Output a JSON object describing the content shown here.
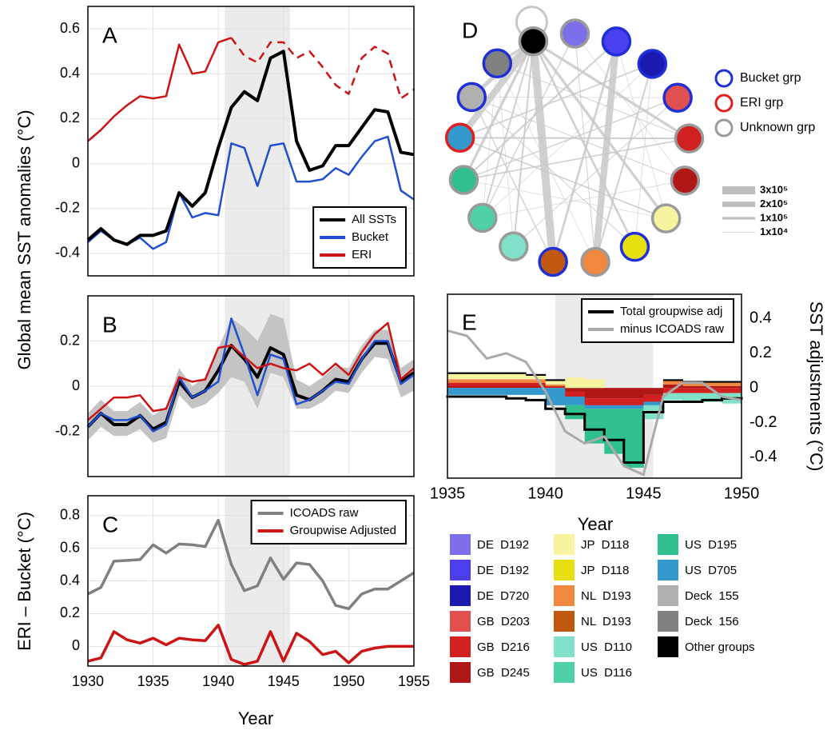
{
  "chart_data": [
    {
      "type": "line",
      "label": "A",
      "ylabel": "Global mean SST anomalies (°C)",
      "x": [
        1930,
        1931,
        1932,
        1933,
        1934,
        1935,
        1936,
        1937,
        1938,
        1939,
        1940,
        1941,
        1942,
        1943,
        1944,
        1945,
        1946,
        1947,
        1948,
        1949,
        1950,
        1951,
        1952,
        1953,
        1954,
        1955
      ],
      "xlim": [
        1930,
        1955
      ],
      "xticks": [
        1930,
        1935,
        1940,
        1945,
        1950,
        1955
      ],
      "show_xtick_labels": false,
      "ylim": [
        -0.5,
        0.7
      ],
      "yticks": [
        -0.4,
        -0.2,
        0,
        0.2,
        0.4,
        0.6
      ],
      "grid": true,
      "shade": [
        1940.5,
        1945.5
      ],
      "legend": "lower right",
      "series": [
        {
          "name": "All SSTs",
          "color": "#000000",
          "line_width": 4,
          "values": [
            -0.34,
            -0.29,
            -0.34,
            -0.36,
            -0.32,
            -0.32,
            -0.3,
            -0.13,
            -0.19,
            -0.13,
            0.07,
            0.25,
            0.32,
            0.28,
            0.47,
            0.5,
            0.1,
            -0.03,
            -0.01,
            0.08,
            0.08,
            0.16,
            0.24,
            0.23,
            0.05,
            0.04
          ]
        },
        {
          "name": "Bucket",
          "color": "#1f4fd0",
          "line_width": 2.5,
          "values": [
            -0.35,
            -0.3,
            -0.34,
            -0.36,
            -0.33,
            -0.38,
            -0.35,
            -0.13,
            -0.24,
            -0.22,
            -0.23,
            0.09,
            0.07,
            -0.1,
            0.08,
            0.09,
            -0.08,
            -0.08,
            -0.07,
            -0.02,
            -0.05,
            0.03,
            0.1,
            0.12,
            -0.12,
            -0.16
          ]
        },
        {
          "name": "ERI",
          "color": "#cc1414",
          "line_width": 2.5,
          "dash_from": 1941,
          "values": [
            0.1,
            0.15,
            0.21,
            0.26,
            0.3,
            0.29,
            0.3,
            0.53,
            0.4,
            0.41,
            0.54,
            0.56,
            0.48,
            0.45,
            0.54,
            0.54,
            0.47,
            0.5,
            0.43,
            0.35,
            0.31,
            0.47,
            0.52,
            0.49,
            0.29,
            0.33
          ]
        }
      ]
    },
    {
      "type": "line",
      "label": "B",
      "x": [
        1930,
        1931,
        1932,
        1933,
        1934,
        1935,
        1936,
        1937,
        1938,
        1939,
        1940,
        1941,
        1942,
        1943,
        1944,
        1945,
        1946,
        1947,
        1948,
        1949,
        1950,
        1951,
        1952,
        1953,
        1954,
        1955
      ],
      "xlim": [
        1930,
        1955
      ],
      "xticks": [
        1930,
        1935,
        1940,
        1945,
        1950,
        1955
      ],
      "show_xtick_labels": false,
      "ylim": [
        -0.4,
        0.4
      ],
      "yticks": [
        -0.2,
        0,
        0.2
      ],
      "grid": true,
      "shade": [
        1940.5,
        1945.5
      ],
      "band": {
        "color": "#c4c4c4",
        "lower": [
          -0.24,
          -0.18,
          -0.22,
          -0.22,
          -0.19,
          -0.25,
          -0.23,
          -0.04,
          -0.1,
          -0.08,
          -0.03,
          0.04,
          0.02,
          -0.1,
          0.06,
          0.04,
          -0.1,
          -0.1,
          -0.07,
          -0.02,
          -0.03,
          0.06,
          0.13,
          0.12,
          -0.05,
          -0.02
        ],
        "upper": [
          -0.12,
          -0.06,
          -0.11,
          -0.11,
          -0.07,
          -0.13,
          -0.09,
          0.08,
          0.0,
          0.04,
          0.17,
          0.3,
          0.26,
          0.2,
          0.32,
          0.3,
          0.03,
          0.0,
          0.04,
          0.09,
          0.08,
          0.18,
          0.25,
          0.25,
          0.08,
          0.12
        ]
      },
      "series": [
        {
          "color": "#cc1414",
          "line_width": 2.5,
          "values": [
            -0.15,
            -0.1,
            -0.05,
            -0.05,
            -0.04,
            -0.11,
            -0.1,
            0.04,
            0.02,
            0.03,
            0.17,
            0.18,
            0.13,
            0.08,
            0.1,
            0.08,
            0.07,
            0.1,
            0.05,
            0.1,
            0.05,
            0.15,
            0.23,
            0.28,
            0.03,
            0.08
          ]
        },
        {
          "color": "#1f4fd0",
          "line_width": 2.5,
          "values": [
            -0.18,
            -0.12,
            -0.15,
            -0.15,
            -0.13,
            -0.2,
            -0.17,
            0.04,
            -0.05,
            -0.02,
            0.02,
            0.3,
            0.14,
            -0.04,
            0.14,
            0.12,
            -0.08,
            -0.06,
            -0.02,
            0.02,
            0.01,
            0.12,
            0.2,
            0.2,
            0.01,
            0.05
          ]
        },
        {
          "color": "#000000",
          "line_width": 4,
          "values": [
            -0.18,
            -0.12,
            -0.17,
            -0.17,
            -0.13,
            -0.19,
            -0.16,
            0.02,
            -0.05,
            -0.02,
            0.07,
            0.18,
            0.12,
            0.04,
            0.17,
            0.14,
            -0.04,
            -0.06,
            -0.02,
            0.03,
            0.02,
            0.12,
            0.19,
            0.19,
            0.02,
            0.06
          ]
        }
      ]
    },
    {
      "type": "line",
      "label": "C",
      "ylabel": "ERI – Bucket (°C)",
      "xlabel": "Year",
      "x": [
        1930,
        1931,
        1932,
        1933,
        1934,
        1935,
        1936,
        1937,
        1938,
        1939,
        1940,
        1941,
        1942,
        1943,
        1944,
        1945,
        1946,
        1947,
        1948,
        1949,
        1950,
        1951,
        1952,
        1953,
        1954,
        1955
      ],
      "xlim": [
        1930,
        1955
      ],
      "xticks": [
        1930,
        1935,
        1940,
        1945,
        1950,
        1955
      ],
      "ylim": [
        -0.12,
        0.92
      ],
      "yticks": [
        0,
        0.2,
        0.4,
        0.6,
        0.8
      ],
      "grid": true,
      "shade": [
        1940.5,
        1945.5
      ],
      "legend": "upper right",
      "series": [
        {
          "name": "ICOADS raw",
          "color": "#808080",
          "line_width": 3.5,
          "values": [
            0.32,
            0.36,
            0.52,
            0.525,
            0.53,
            0.62,
            0.57,
            0.625,
            0.62,
            0.61,
            0.77,
            0.5,
            0.34,
            0.37,
            0.54,
            0.41,
            0.51,
            0.5,
            0.4,
            0.25,
            0.23,
            0.32,
            0.35,
            0.35,
            0.4,
            0.45
          ]
        },
        {
          "name": "Groupwise Adjusted",
          "color": "#cc1414",
          "line_width": 3.5,
          "values": [
            -0.09,
            -0.07,
            0.09,
            0.04,
            0.02,
            0.05,
            0.01,
            0.05,
            0.04,
            0.035,
            0.13,
            -0.08,
            -0.11,
            -0.09,
            0.09,
            -0.09,
            0.08,
            0.03,
            -0.05,
            -0.03,
            -0.1,
            -0.03,
            -0.01,
            0.0,
            0.0,
            0.0
          ]
        }
      ]
    },
    {
      "type": "network",
      "label": "D",
      "edge_color": "#c8c8c8",
      "groups": [
        {
          "name": "Bucket grp",
          "color": "#1f2fd8"
        },
        {
          "name": "ERI grp",
          "color": "#e02020"
        },
        {
          "name": "Unknown grp",
          "color": "#9a9a9a"
        }
      ],
      "nodes": [
        {
          "name": "Other groups",
          "color": "#000000",
          "group": 2,
          "text_color": "#000000"
        },
        {
          "name": "DE  D192",
          "color": "#7b6fea",
          "group": 2
        },
        {
          "name": "DE  D192",
          "color": "#4b3ff0",
          "group": 0
        },
        {
          "name": "DE  D720",
          "color": "#1a1ab0",
          "group": 0
        },
        {
          "name": "GB  D203",
          "color": "#e05050",
          "group": 0
        },
        {
          "name": "GB  D216",
          "color": "#d02020",
          "group": 2
        },
        {
          "name": "GB  D245",
          "color": "#b01818",
          "group": 2
        },
        {
          "name": "JP  D118",
          "color": "#f7f3a0",
          "group": 2
        },
        {
          "name": "JP  D118",
          "color": "#e8df10",
          "group": 0
        },
        {
          "name": "NL  D193",
          "color": "#f08840",
          "group": 2
        },
        {
          "name": "NL  D193",
          "color": "#c05810",
          "group": 0
        },
        {
          "name": "US  D110",
          "color": "#80e0c8",
          "group": 2
        },
        {
          "name": "US  D116",
          "color": "#50d0a8",
          "group": 2
        },
        {
          "name": "US  D195",
          "color": "#30c090",
          "group": 2
        },
        {
          "name": "US  D705",
          "color": "#3399cc",
          "group": 1
        },
        {
          "name": "Deck  155",
          "color": "#b0b0b0",
          "group": 0
        },
        {
          "name": "Deck  156",
          "color": "#808080",
          "group": 0
        }
      ],
      "self_loops": [
        0
      ],
      "edges": [
        [
          0,
          10,
          300000
        ],
        [
          0,
          14,
          250000
        ],
        [
          2,
          9,
          250000
        ],
        [
          0,
          15,
          150000
        ],
        [
          0,
          16,
          100000
        ],
        [
          0,
          5,
          100000
        ],
        [
          0,
          7,
          100000
        ],
        [
          0,
          8,
          80000
        ],
        [
          0,
          12,
          60000
        ],
        [
          0,
          13,
          100000
        ],
        [
          0,
          11,
          60000
        ],
        [
          2,
          10,
          80000
        ],
        [
          2,
          13,
          60000
        ],
        [
          3,
          14,
          50000
        ],
        [
          3,
          9,
          60000
        ],
        [
          4,
          13,
          40000
        ],
        [
          5,
          13,
          50000
        ],
        [
          5,
          16,
          30000
        ],
        [
          6,
          15,
          30000
        ],
        [
          7,
          14,
          50000
        ],
        [
          1,
          12,
          40000
        ],
        [
          8,
          15,
          30000
        ],
        [
          4,
          11,
          30000
        ],
        [
          6,
          12,
          20000
        ],
        [
          9,
          16,
          20000
        ],
        [
          10,
          15,
          40000
        ],
        [
          11,
          16,
          20000
        ],
        [
          3,
          12,
          20000
        ],
        [
          1,
          9,
          30000
        ],
        [
          5,
          14,
          60000
        ],
        [
          2,
          7,
          20000
        ],
        [
          4,
          15,
          20000
        ],
        [
          3,
          8,
          20000
        ],
        [
          1,
          6,
          15000
        ],
        [
          12,
          16,
          15000
        ],
        [
          7,
          13,
          15000
        ]
      ],
      "width_ticks": [
        {
          "value": 300000,
          "label": "3x10⁵"
        },
        {
          "value": 200000,
          "label": "2x10⁵"
        },
        {
          "value": 100000,
          "label": "1x10⁵"
        },
        {
          "value": 10000,
          "label": "1x10⁴"
        }
      ]
    },
    {
      "type": "stacked_bar",
      "label": "E",
      "ylabel": "SST adjustments (°C)",
      "xlabel": "Year",
      "yaxis": "right",
      "x": [
        1935,
        1936,
        1937,
        1938,
        1939,
        1940,
        1941,
        1942,
        1943,
        1944,
        1945,
        1946,
        1947,
        1948,
        1949
      ],
      "xlim": [
        1935,
        1950
      ],
      "xticks": [
        1935,
        1940,
        1945,
        1950
      ],
      "ylim": [
        -0.52,
        0.54
      ],
      "yticks": [
        -0.4,
        -0.2,
        0,
        0.2,
        0.4
      ],
      "shade": [
        1940.5,
        1945.5
      ],
      "legend": "upper right",
      "series": [
        {
          "color": "#b01818",
          "values": [
            0.01,
            0.01,
            0.01,
            0.01,
            0.01,
            0.0,
            -0.02,
            -0.06,
            -0.06,
            -0.06,
            -0.04,
            0.02,
            0.01,
            0.01,
            0.01
          ]
        },
        {
          "color": "#d02020",
          "values": [
            0.02,
            0.02,
            0.02,
            0.02,
            0.02,
            0.01,
            -0.03,
            -0.04,
            -0.04,
            -0.04,
            -0.04,
            -0.03,
            -0.03,
            -0.03,
            -0.03
          ]
        },
        {
          "color": "#f08840",
          "values": [
            0.02,
            0.02,
            0.02,
            0.02,
            0.02,
            0.01,
            0.0,
            0.0,
            0.0,
            0.0,
            0.0,
            0.02,
            0.02,
            0.02,
            0.02
          ]
        },
        {
          "color": "#f7f3a0",
          "values": [
            0.03,
            0.03,
            0.03,
            0.03,
            0.02,
            0.02,
            0.06,
            0.05,
            0.0,
            0.0,
            0.0,
            0.0,
            0.0,
            0.0,
            0.0
          ]
        },
        {
          "color": "#000000",
          "values": [
            0.01,
            0.01,
            0.01,
            0.01,
            0.01,
            0.01,
            0.0,
            0.0,
            0.0,
            0.0,
            0.0,
            0.01,
            0.01,
            0.01,
            0.01
          ]
        },
        {
          "color": "#3399cc",
          "values": [
            -0.04,
            -0.04,
            -0.04,
            -0.04,
            -0.04,
            -0.1,
            -0.05,
            -0.02,
            -0.02,
            -0.02,
            -0.02,
            0.0,
            0.0,
            0.0,
            0.0
          ]
        },
        {
          "color": "#30c090",
          "values": [
            0,
            0,
            0,
            0,
            0,
            0,
            -0.08,
            -0.2,
            -0.26,
            -0.34,
            0,
            0,
            0,
            0,
            0
          ]
        },
        {
          "color": "#80e0c8",
          "values": [
            0,
            0,
            0,
            0,
            0,
            0,
            0,
            0,
            0,
            0,
            -0.08,
            -0.04,
            -0.05,
            -0.05,
            -0.06
          ]
        }
      ],
      "lines": [
        {
          "name": "Total groupwise adj",
          "color": "#000000",
          "kind": "step",
          "x": [
            1935,
            1936,
            1937,
            1938,
            1939,
            1940,
            1941,
            1942,
            1943,
            1944,
            1945,
            1946,
            1947,
            1948,
            1949
          ],
          "values": [
            -0.05,
            -0.05,
            -0.05,
            -0.06,
            -0.07,
            -0.12,
            -0.15,
            -0.24,
            -0.3,
            -0.43,
            -0.14,
            -0.08,
            -0.08,
            -0.07,
            -0.06
          ]
        },
        {
          "name": "minus ICOADS raw",
          "color": "#aaaaaa",
          "kind": "line",
          "x": [
            1935,
            1936,
            1937,
            1938,
            1939,
            1940,
            1941,
            1942,
            1943,
            1944,
            1945,
            1946,
            1947,
            1948,
            1949,
            1950
          ],
          "values": [
            0.33,
            0.3,
            0.17,
            0.2,
            0.15,
            -0.02,
            -0.25,
            -0.32,
            -0.28,
            -0.45,
            -0.5,
            -0.05,
            0.03,
            0.03,
            -0.05,
            -0.07
          ]
        }
      ]
    }
  ]
}
